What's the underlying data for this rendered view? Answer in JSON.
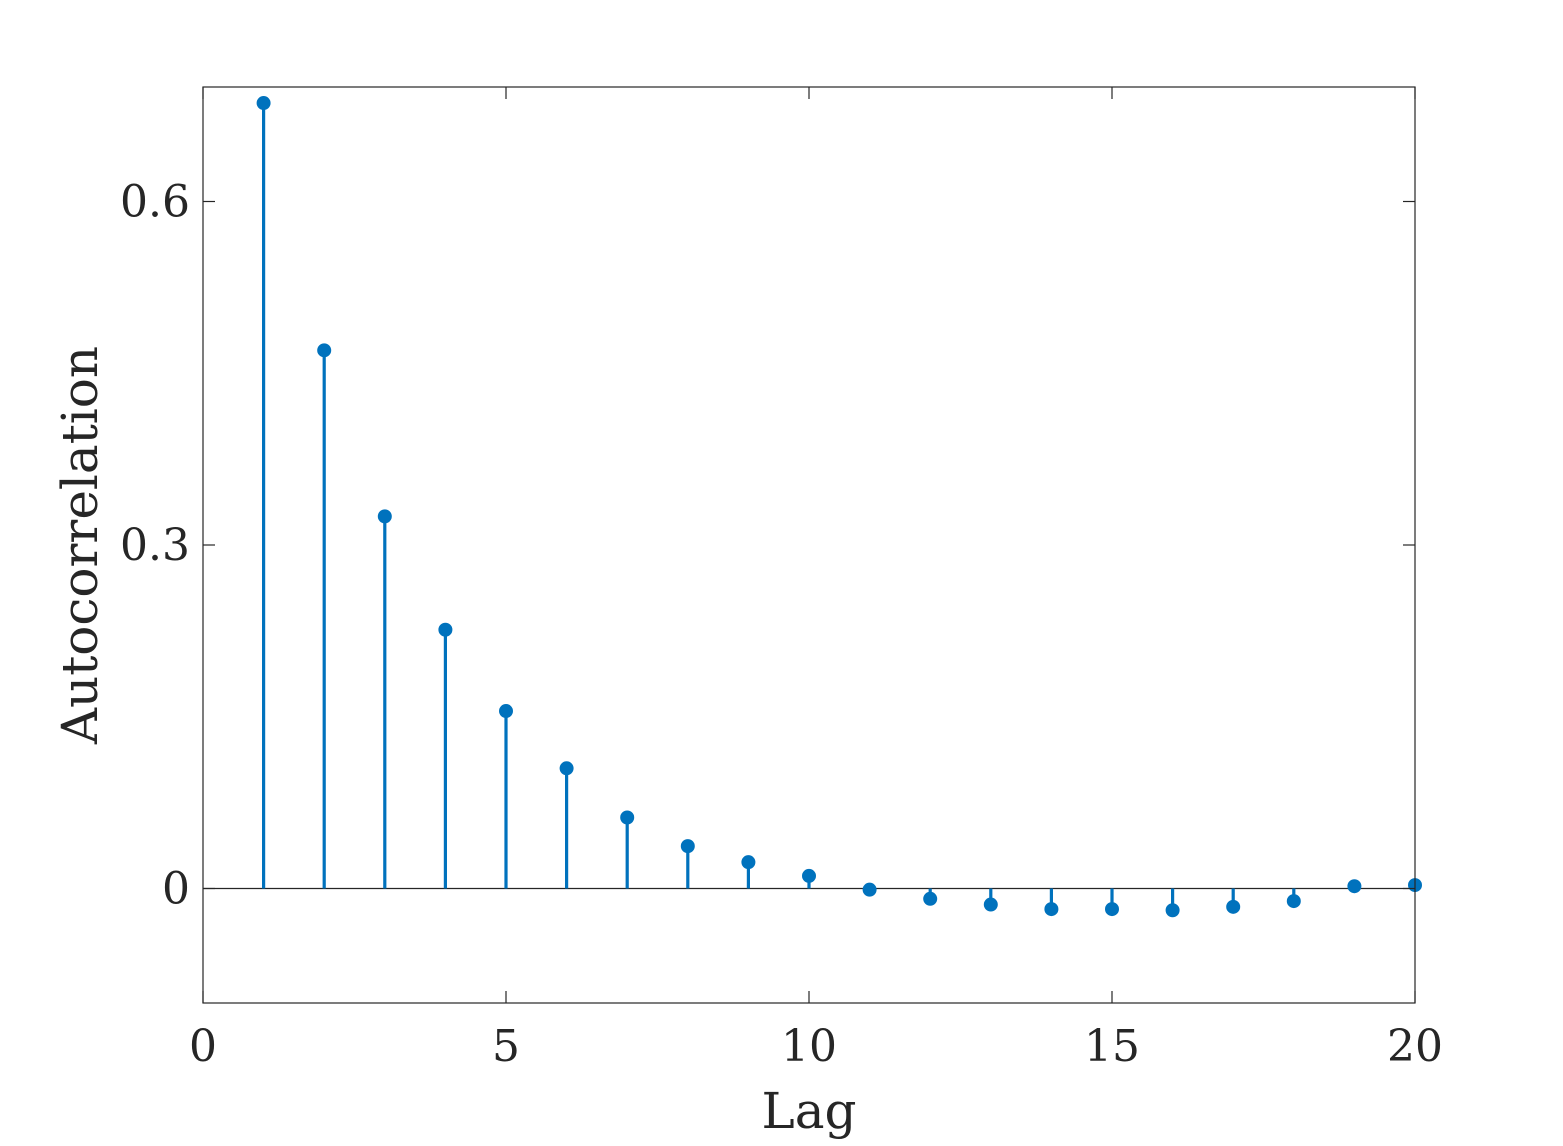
{
  "chart_data": {
    "type": "stem",
    "title": "",
    "xlabel": "Lag",
    "ylabel": "Autocorrelation",
    "xlim": [
      0,
      20
    ],
    "ylim": [
      -0.1,
      0.7
    ],
    "xticks": [
      0,
      5,
      10,
      15,
      20
    ],
    "xtick_labels": [
      "0",
      "5",
      "10",
      "15",
      "20"
    ],
    "yticks": [
      0,
      0.3,
      0.6
    ],
    "ytick_labels": [
      "0",
      "0.3",
      "0.6"
    ],
    "grid": false,
    "legend": "none",
    "baseline": 0,
    "color": "#0072BD",
    "series": [
      {
        "x": [
          1,
          2,
          3,
          4,
          5,
          6,
          7,
          8,
          9,
          10,
          11,
          12,
          13,
          14,
          15,
          16,
          17,
          18,
          19,
          20
        ],
        "values": [
          0.686,
          0.47,
          0.325,
          0.226,
          0.155,
          0.105,
          0.062,
          0.037,
          0.023,
          0.011,
          -0.001,
          -0.009,
          -0.014,
          -0.018,
          -0.018,
          -0.019,
          -0.016,
          -0.011,
          0.002,
          0.003
        ]
      }
    ]
  }
}
